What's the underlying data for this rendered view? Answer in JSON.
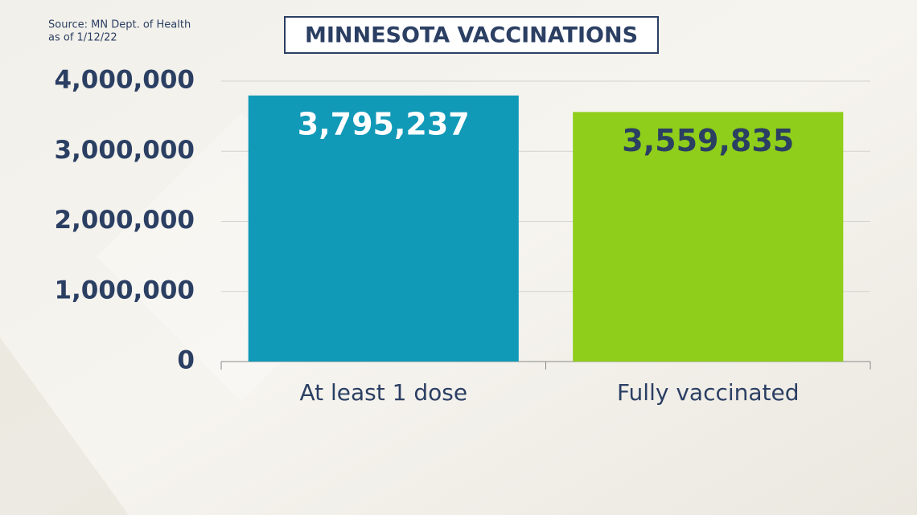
{
  "chart_data": {
    "type": "bar",
    "title": "MINNESOTA VACCINATIONS",
    "source": "Source: MN Dept. of Health",
    "date_note": "as of 1/12/22",
    "categories": [
      "At least 1 dose",
      "Fully vaccinated"
    ],
    "values": [
      3795237,
      3559835
    ],
    "value_labels": [
      "3,795,237",
      "3,559,835"
    ],
    "colors": [
      "#1199b8",
      "#8fce1a"
    ],
    "value_label_colors": [
      "#ffffff",
      "#2b3f63"
    ],
    "ylim": [
      0,
      4000000
    ],
    "yticks": [
      0,
      {
        "value": 1000000,
        "label": "1,000,000"
      },
      {
        "value": 2000000,
        "label": "2,000,000"
      },
      {
        "value": 3000000,
        "label": "3,000,000"
      },
      {
        "value": 4000000,
        "label": "4,000,000"
      }
    ],
    "grid": true
  }
}
